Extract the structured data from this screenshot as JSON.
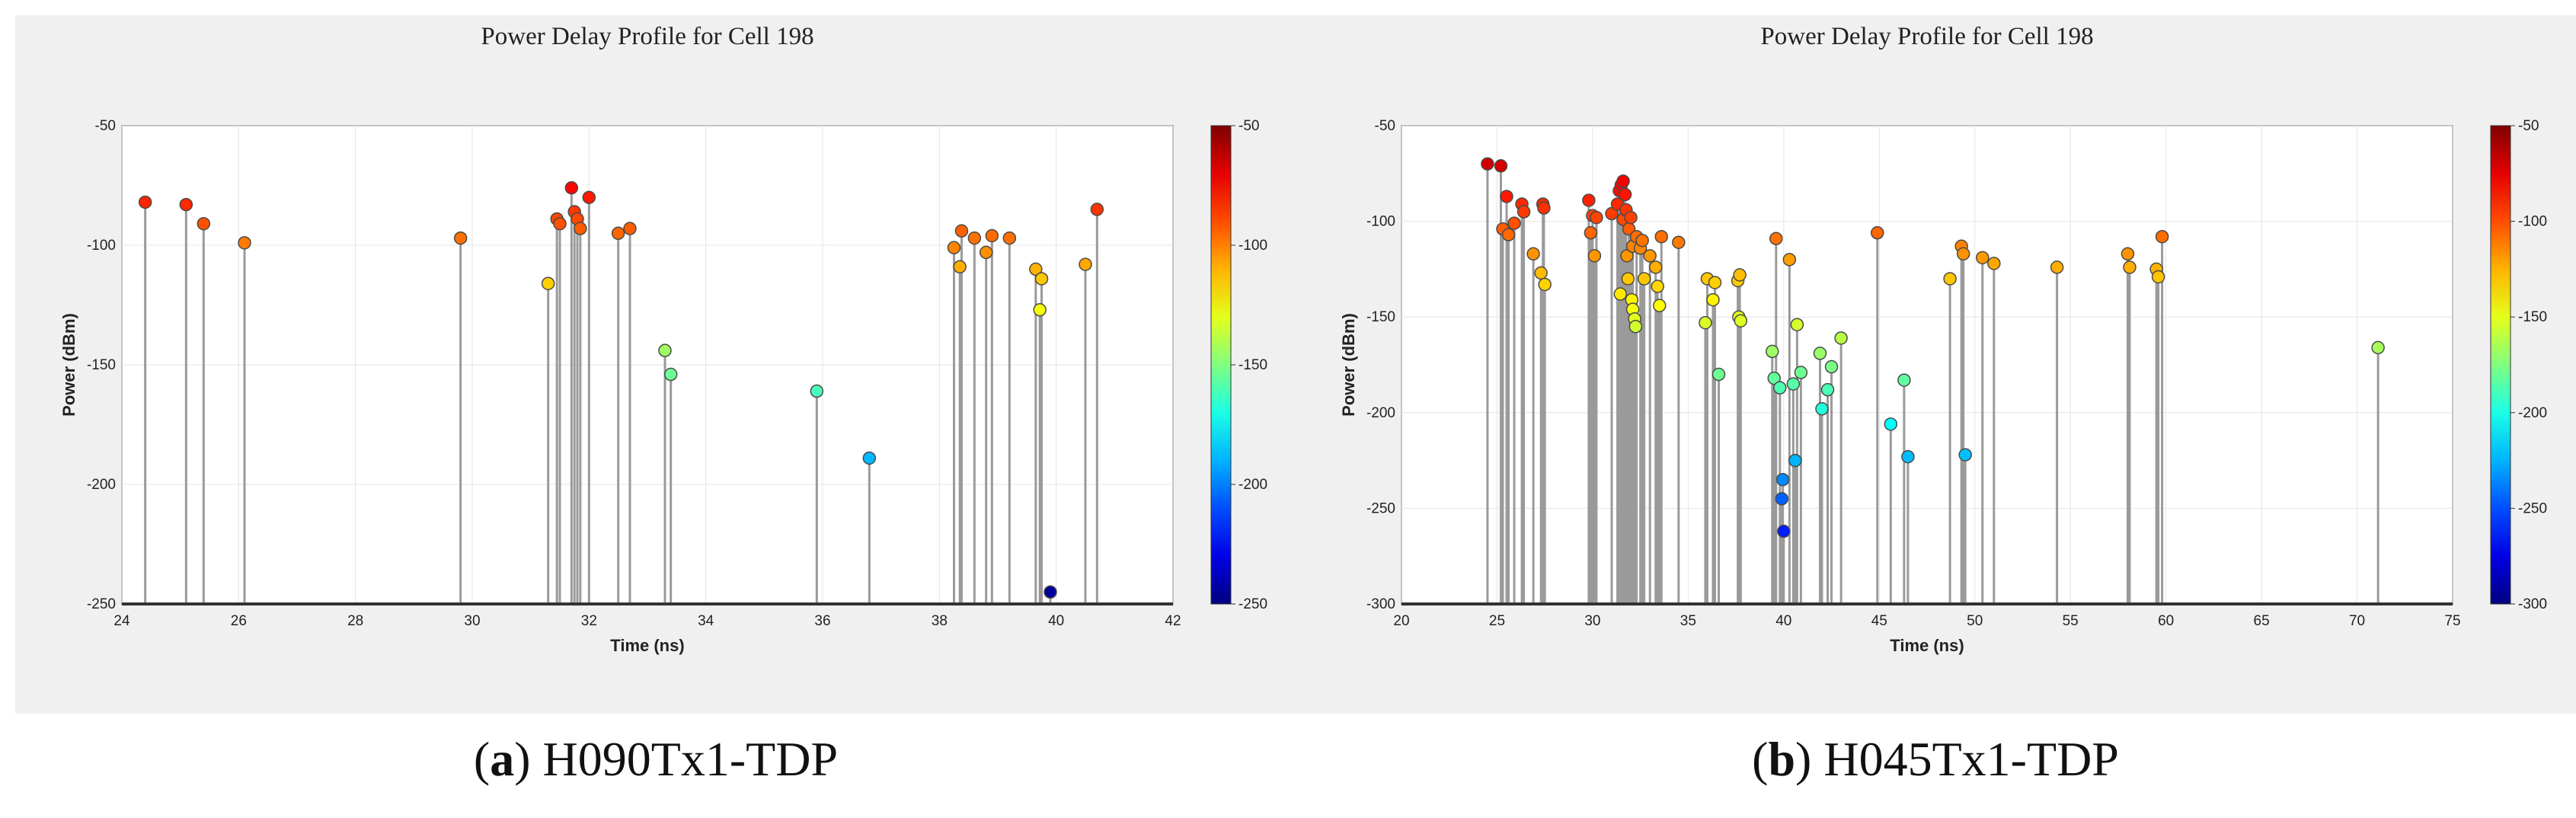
{
  "charts": [
    {
      "caption_letter": "a",
      "caption_text": "H090Tx1-TDP",
      "chart_data": {
        "type": "scatter",
        "style": "stem",
        "title": "Power Delay Profile for Cell 198",
        "xlabel": "Time (ns)",
        "ylabel": "Power (dBm)",
        "xlim": [
          24,
          42
        ],
        "ylim": [
          -250,
          -50
        ],
        "xticks": [
          24,
          26,
          28,
          30,
          32,
          34,
          36,
          38,
          40,
          42
        ],
        "yticks": [
          -50,
          -100,
          -150,
          -200,
          -250
        ],
        "colorbar": {
          "min": -250,
          "max": -50,
          "ticks": [
            -50,
            -100,
            -150,
            -200,
            -250
          ]
        },
        "grid": true,
        "points": [
          [
            24.4,
            -82
          ],
          [
            25.1,
            -83
          ],
          [
            25.4,
            -91
          ],
          [
            26.1,
            -99
          ],
          [
            29.8,
            -97
          ],
          [
            31.3,
            -116
          ],
          [
            31.45,
            -89
          ],
          [
            31.5,
            -91
          ],
          [
            31.7,
            -76
          ],
          [
            31.75,
            -86
          ],
          [
            31.8,
            -89
          ],
          [
            31.85,
            -93
          ],
          [
            32.0,
            -80
          ],
          [
            32.5,
            -95
          ],
          [
            32.7,
            -93
          ],
          [
            33.3,
            -144
          ],
          [
            33.4,
            -154
          ],
          [
            35.9,
            -161
          ],
          [
            36.8,
            -189
          ],
          [
            38.25,
            -101
          ],
          [
            38.35,
            -109
          ],
          [
            38.38,
            -94
          ],
          [
            38.6,
            -97
          ],
          [
            38.8,
            -103
          ],
          [
            38.9,
            -96
          ],
          [
            39.2,
            -97
          ],
          [
            39.65,
            -110
          ],
          [
            39.75,
            -114
          ],
          [
            39.72,
            -127
          ],
          [
            40.5,
            -108
          ],
          [
            40.7,
            -85
          ],
          [
            39.9,
            -245
          ]
        ]
      }
    },
    {
      "caption_letter": "b",
      "caption_text": "H045Tx1-TDP",
      "chart_data": {
        "type": "scatter",
        "style": "stem",
        "title": "Power Delay Profile for Cell 198",
        "xlabel": "Time (ns)",
        "ylabel": "Power (dBm)",
        "xlim": [
          20,
          75
        ],
        "ylim": [
          -300,
          -50
        ],
        "xticks": [
          20,
          25,
          30,
          35,
          40,
          45,
          50,
          55,
          60,
          65,
          70,
          75
        ],
        "yticks": [
          -50,
          -100,
          -150,
          -200,
          -250,
          -300
        ],
        "colorbar": {
          "min": -300,
          "max": -50,
          "ticks": [
            -50,
            -100,
            -150,
            -200,
            -250,
            -300
          ]
        },
        "grid": true,
        "points": [
          [
            24.5,
            -70
          ],
          [
            25.2,
            -71
          ],
          [
            25.3,
            -104
          ],
          [
            25.5,
            -87
          ],
          [
            25.6,
            -107
          ],
          [
            25.9,
            -101
          ],
          [
            26.3,
            -91
          ],
          [
            26.4,
            -95
          ],
          [
            26.9,
            -117
          ],
          [
            27.3,
            -127
          ],
          [
            27.4,
            -91
          ],
          [
            27.45,
            -93
          ],
          [
            27.5,
            -133
          ],
          [
            29.8,
            -89
          ],
          [
            29.9,
            -106
          ],
          [
            30.0,
            -97
          ],
          [
            30.1,
            -118
          ],
          [
            30.2,
            -98
          ],
          [
            31.0,
            -96
          ],
          [
            31.3,
            -91
          ],
          [
            31.4,
            -84
          ],
          [
            31.5,
            -81
          ],
          [
            31.6,
            -79
          ],
          [
            31.6,
            -99
          ],
          [
            31.7,
            -86
          ],
          [
            31.75,
            -94
          ],
          [
            31.8,
            -118
          ],
          [
            31.85,
            -130
          ],
          [
            31.9,
            -104
          ],
          [
            32.0,
            -98
          ],
          [
            31.45,
            -138
          ],
          [
            32.05,
            -141
          ],
          [
            32.1,
            -146
          ],
          [
            32.2,
            -151
          ],
          [
            32.25,
            -155
          ],
          [
            32.1,
            -113
          ],
          [
            32.3,
            -108
          ],
          [
            32.5,
            -114
          ],
          [
            32.6,
            -110
          ],
          [
            32.7,
            -130
          ],
          [
            33.0,
            -118
          ],
          [
            33.3,
            -124
          ],
          [
            33.4,
            -134
          ],
          [
            33.5,
            -144
          ],
          [
            33.6,
            -108
          ],
          [
            34.5,
            -111
          ],
          [
            35.9,
            -153
          ],
          [
            36.0,
            -130
          ],
          [
            36.3,
            -141
          ],
          [
            36.4,
            -132
          ],
          [
            36.6,
            -180
          ],
          [
            37.6,
            -131
          ],
          [
            37.7,
            -128
          ],
          [
            37.65,
            -150
          ],
          [
            37.75,
            -152
          ],
          [
            39.4,
            -168
          ],
          [
            39.5,
            -182
          ],
          [
            39.6,
            -109
          ],
          [
            39.8,
            -187
          ],
          [
            39.9,
            -245
          ],
          [
            39.95,
            -235
          ],
          [
            40.0,
            -262
          ],
          [
            40.3,
            -120
          ],
          [
            40.5,
            -185
          ],
          [
            40.7,
            -154
          ],
          [
            40.9,
            -179
          ],
          [
            40.6,
            -225
          ],
          [
            41.9,
            -169
          ],
          [
            42.0,
            -198
          ],
          [
            42.3,
            -188
          ],
          [
            42.5,
            -176
          ],
          [
            43.0,
            -161
          ],
          [
            44.9,
            -106
          ],
          [
            45.6,
            -206
          ],
          [
            46.3,
            -183
          ],
          [
            46.5,
            -223
          ],
          [
            48.7,
            -130
          ],
          [
            49.3,
            -113
          ],
          [
            49.4,
            -117
          ],
          [
            49.5,
            -222
          ],
          [
            50.4,
            -119
          ],
          [
            51.0,
            -122
          ],
          [
            54.3,
            -124
          ],
          [
            58.0,
            -117
          ],
          [
            58.1,
            -124
          ],
          [
            59.5,
            -125
          ],
          [
            59.6,
            -129
          ],
          [
            59.8,
            -108
          ],
          [
            71.1,
            -166
          ]
        ]
      }
    }
  ]
}
